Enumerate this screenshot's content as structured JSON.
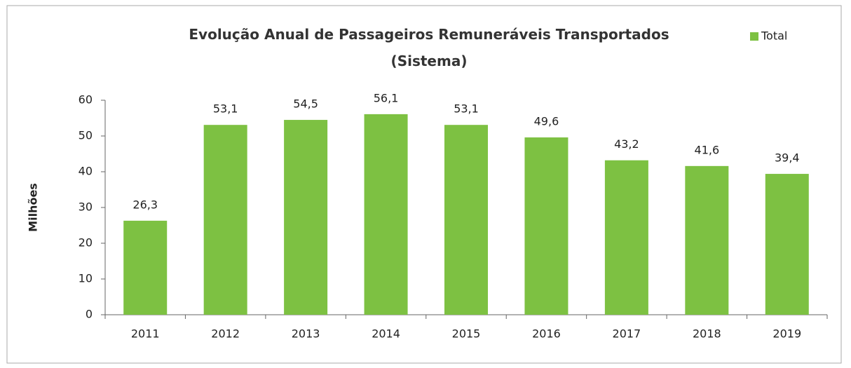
{
  "chart_data": {
    "type": "bar",
    "title": "Evolução Anual de Passageiros Remuneráveis Transportados (Sistema)",
    "y_label": "Milhões",
    "categories": [
      "2011",
      "2012",
      "2013",
      "2014",
      "2015",
      "2016",
      "2017",
      "2018",
      "2019"
    ],
    "series": [
      {
        "name": "Total",
        "color": "#7dc142",
        "values": [
          26.3,
          53.1,
          54.5,
          56.1,
          53.1,
          49.6,
          43.2,
          41.6,
          39.4
        ],
        "value_labels": [
          "26,3",
          "53,1",
          "54,5",
          "56,1",
          "53,1",
          "49,6",
          "43,2",
          "41,6",
          "39,4"
        ]
      }
    ],
    "ylim": [
      0,
      60
    ],
    "yticks": [
      0,
      10,
      20,
      30,
      40,
      50,
      60
    ],
    "grid": false,
    "legend": "top-right"
  }
}
